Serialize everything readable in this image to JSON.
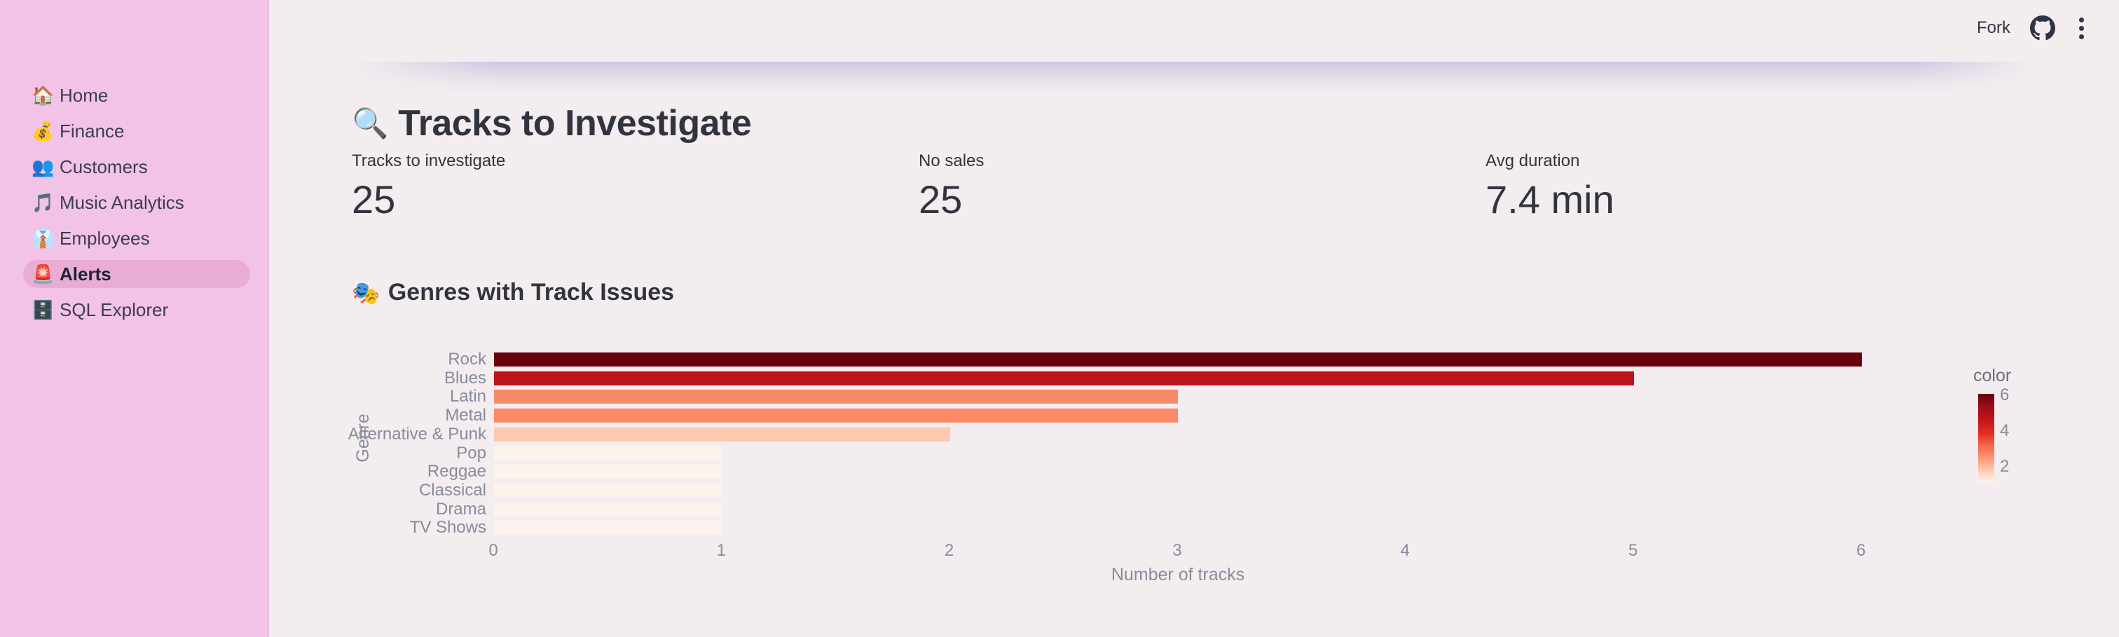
{
  "toolbar": {
    "fork_label": "Fork"
  },
  "sidebar": {
    "items": [
      {
        "icon": "🏠",
        "icon_name": "house-icon",
        "label": "Home",
        "selected": false
      },
      {
        "icon": "💰",
        "icon_name": "money-bag-icon",
        "label": "Finance",
        "selected": false
      },
      {
        "icon": "👥",
        "icon_name": "busts-icon",
        "label": "Customers",
        "selected": false
      },
      {
        "icon": "🎵",
        "icon_name": "musical-note-icon",
        "label": "Music Analytics",
        "selected": false
      },
      {
        "icon": "👔",
        "icon_name": "necktie-icon",
        "label": "Employees",
        "selected": false
      },
      {
        "icon": "🚨",
        "icon_name": "siren-icon",
        "label": "Alerts",
        "selected": true
      },
      {
        "icon": "🗄️",
        "icon_name": "file-cabinet-icon",
        "label": "SQL Explorer",
        "selected": false
      }
    ]
  },
  "main": {
    "title_icon": "🔍",
    "title": "Tracks to Investigate",
    "metrics": [
      {
        "label": "Tracks to investigate",
        "value": "25"
      },
      {
        "label": "No sales",
        "value": "25"
      },
      {
        "label": "Avg duration",
        "value": "7.4 min"
      }
    ],
    "section_icon": "🎭",
    "section_title": "Genres with Track Issues"
  },
  "chart_data": {
    "type": "bar",
    "orientation": "horizontal",
    "title": "Genres with Track Issues",
    "categories": [
      "Rock",
      "Blues",
      "Latin",
      "Metal",
      "Alternative & Punk",
      "Pop",
      "Reggae",
      "Classical",
      "Drama",
      "TV Shows"
    ],
    "values": [
      6,
      5,
      3,
      3,
      2,
      1,
      1,
      1,
      1,
      1
    ],
    "bar_colors": [
      "#68000d",
      "#bc141a",
      "#f98a66",
      "#f98a66",
      "#fbc9ae",
      "#fdf3ec",
      "#fdf3ec",
      "#fdf3ec",
      "#fdf3ec",
      "#fdf3ec"
    ],
    "xlabel": "Number of tracks",
    "ylabel": "Genre",
    "xlim": [
      0,
      6
    ],
    "x_ticks": [
      0,
      1,
      2,
      3,
      4,
      5,
      6
    ],
    "grid": false,
    "legend": {
      "title": "color",
      "position": "right",
      "domain": [
        1,
        6
      ],
      "ticks": [
        6,
        4,
        2
      ],
      "colormap": "Reds",
      "top_color": "#68000d",
      "bottom_color": "#fdf3ec"
    }
  },
  "colors": {
    "sidebar_bg": "#f2c3e7",
    "sidebar_selected_bg": "#e9add5",
    "sidebar_text": "#3c3e4a",
    "sidebar_selected_text": "#20222c",
    "main_bg": "#f4edf0",
    "heading_text": "#31333f",
    "muted_chart_text": "#878b9c",
    "toolbar_text": "#2f3342",
    "header_shadow": "#cbc5e0"
  }
}
